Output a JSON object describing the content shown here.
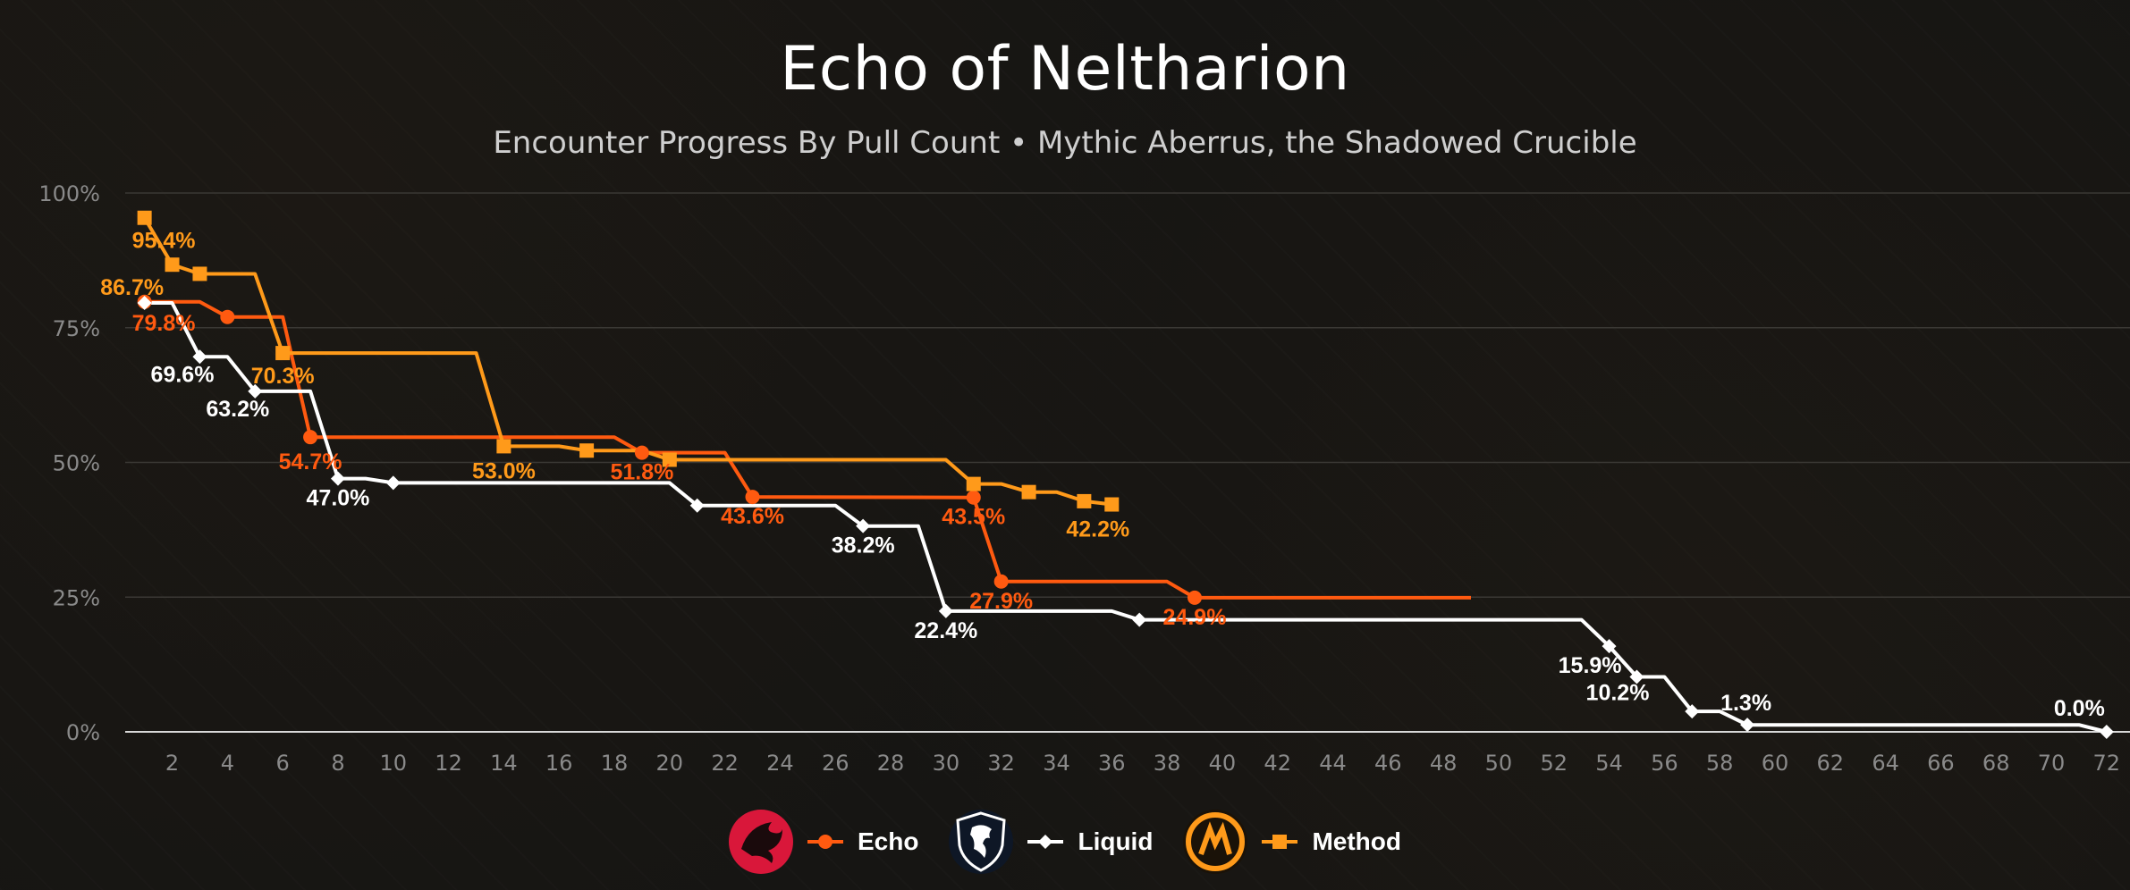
{
  "page": {
    "title": "Echo of Neltharion",
    "subtitle": "Encounter Progress By Pull Count • Mythic Aberrus, the Shadowed Crucible"
  },
  "chart_data": {
    "type": "line",
    "title": "Echo of Neltharion",
    "subtitle": "Encounter Progress By Pull Count • Mythic Aberrus, the Shadowed Crucible",
    "xlabel": "",
    "ylabel": "",
    "xlim": [
      0.3,
      72.2
    ],
    "ylim": [
      0,
      100
    ],
    "y_ticks": [
      "0%",
      "25%",
      "50%",
      "75%",
      "100%"
    ],
    "x_ticks": [
      2,
      4,
      6,
      8,
      10,
      12,
      14,
      16,
      18,
      20,
      22,
      24,
      26,
      28,
      30,
      32,
      34,
      36,
      38,
      40,
      42,
      44,
      46,
      48,
      50,
      52,
      54,
      56,
      58,
      60,
      62,
      64,
      66,
      68,
      70,
      72
    ],
    "grid": true,
    "legend_position": "bottom",
    "series": [
      {
        "name": "Echo",
        "color": "#ff5a10",
        "marker": "circle",
        "points": [
          [
            1,
            79.8
          ],
          [
            3,
            79.8
          ],
          [
            4,
            77.0
          ],
          [
            6,
            77.0
          ],
          [
            7,
            54.7
          ],
          [
            18,
            54.7
          ],
          [
            19,
            51.8
          ],
          [
            22,
            51.8
          ],
          [
            23,
            43.6
          ],
          [
            31,
            43.5
          ],
          [
            32,
            27.9
          ],
          [
            38,
            27.9
          ],
          [
            39,
            24.9
          ],
          [
            49,
            24.9
          ]
        ],
        "marker_points": [
          [
            1,
            79.8
          ],
          [
            4,
            77.0
          ],
          [
            7,
            54.7
          ],
          [
            19,
            51.8
          ],
          [
            23,
            43.6
          ],
          [
            31,
            43.5
          ],
          [
            32,
            27.9
          ],
          [
            39,
            24.9
          ]
        ],
        "labels": [
          {
            "x": 1,
            "y": 79.8,
            "text": "79.8%"
          },
          {
            "x": 7,
            "y": 54.7,
            "text": "54.7%"
          },
          {
            "x": 19,
            "y": 51.8,
            "text": "51.8%"
          },
          {
            "x": 23,
            "y": 43.6,
            "text": "43.6%"
          },
          {
            "x": 31,
            "y": 43.5,
            "text": "43.5%"
          },
          {
            "x": 32,
            "y": 27.9,
            "text": "27.9%"
          },
          {
            "x": 39,
            "y": 24.9,
            "text": "24.9%"
          }
        ]
      },
      {
        "name": "Liquid",
        "color": "#ffffff",
        "marker": "diamond",
        "points": [
          [
            1,
            79.6
          ],
          [
            2,
            79.6
          ],
          [
            3,
            69.6
          ],
          [
            4,
            69.6
          ],
          [
            5,
            63.2
          ],
          [
            7,
            63.2
          ],
          [
            8,
            47.0
          ],
          [
            9,
            47.0
          ],
          [
            10,
            46.2
          ],
          [
            20,
            46.2
          ],
          [
            21,
            42.0
          ],
          [
            26,
            42.0
          ],
          [
            27,
            38.2
          ],
          [
            29,
            38.2
          ],
          [
            30,
            22.4
          ],
          [
            36,
            22.4
          ],
          [
            37,
            20.8
          ],
          [
            53,
            20.8
          ],
          [
            54,
            15.9
          ],
          [
            55,
            10.2
          ],
          [
            56,
            10.2
          ],
          [
            57,
            3.8
          ],
          [
            58,
            3.8
          ],
          [
            59,
            1.3
          ],
          [
            71,
            1.3
          ],
          [
            72,
            0.0
          ]
        ],
        "marker_points": [
          [
            1,
            79.6
          ],
          [
            3,
            69.6
          ],
          [
            5,
            63.2
          ],
          [
            8,
            47.0
          ],
          [
            10,
            46.2
          ],
          [
            21,
            42.0
          ],
          [
            27,
            38.2
          ],
          [
            30,
            22.4
          ],
          [
            37,
            20.8
          ],
          [
            54,
            15.9
          ],
          [
            55,
            10.2
          ],
          [
            57,
            3.8
          ],
          [
            59,
            1.3
          ],
          [
            72,
            0.0
          ]
        ],
        "labels": [
          {
            "x": 3,
            "y": 69.6,
            "text": "69.6%"
          },
          {
            "x": 5,
            "y": 63.2,
            "text": "63.2%"
          },
          {
            "x": 8,
            "y": 47.0,
            "text": "47.0%"
          },
          {
            "x": 27,
            "y": 38.2,
            "text": "38.2%"
          },
          {
            "x": 30,
            "y": 22.4,
            "text": "22.4%"
          },
          {
            "x": 54,
            "y": 15.9,
            "text": "15.9%"
          },
          {
            "x": 55,
            "y": 10.2,
            "text": "10.2%"
          },
          {
            "x": 59,
            "y": 1.3,
            "text": "1.3%"
          },
          {
            "x": 72,
            "y": 0.0,
            "text": "0.0%"
          }
        ]
      },
      {
        "name": "Method",
        "color": "#ff9a1a",
        "marker": "square",
        "points": [
          [
            1,
            95.4
          ],
          [
            2,
            86.7
          ],
          [
            3,
            85.0
          ],
          [
            5,
            85.0
          ],
          [
            6,
            70.3
          ],
          [
            13,
            70.3
          ],
          [
            14,
            53.0
          ],
          [
            16,
            53.0
          ],
          [
            17,
            52.2
          ],
          [
            19,
            52.2
          ],
          [
            20,
            50.5
          ],
          [
            30,
            50.5
          ],
          [
            31,
            46.0
          ],
          [
            32,
            46.0
          ],
          [
            33,
            44.5
          ],
          [
            34,
            44.5
          ],
          [
            35,
            42.8
          ],
          [
            36,
            42.2
          ]
        ],
        "marker_points": [
          [
            1,
            95.4
          ],
          [
            2,
            86.7
          ],
          [
            3,
            85.0
          ],
          [
            6,
            70.3
          ],
          [
            14,
            53.0
          ],
          [
            17,
            52.2
          ],
          [
            20,
            50.5
          ],
          [
            31,
            46.0
          ],
          [
            33,
            44.5
          ],
          [
            35,
            42.8
          ],
          [
            36,
            42.2
          ]
        ],
        "labels": [
          {
            "x": 1,
            "y": 95.4,
            "text": "95.4%"
          },
          {
            "x": 2,
            "y": 86.7,
            "text": "86.7%"
          },
          {
            "x": 6,
            "y": 70.3,
            "text": "70.3%"
          },
          {
            "x": 14,
            "y": 53.0,
            "text": "53.0%"
          },
          {
            "x": 36,
            "y": 42.2,
            "text": "42.2%"
          }
        ]
      }
    ]
  },
  "legend": {
    "items": [
      {
        "name": "Echo",
        "logo_icon": "echo-dragon-logo-icon"
      },
      {
        "name": "Liquid",
        "logo_icon": "liquid-horse-logo-icon"
      },
      {
        "name": "Method",
        "logo_icon": "method-m-logo-icon"
      }
    ]
  }
}
